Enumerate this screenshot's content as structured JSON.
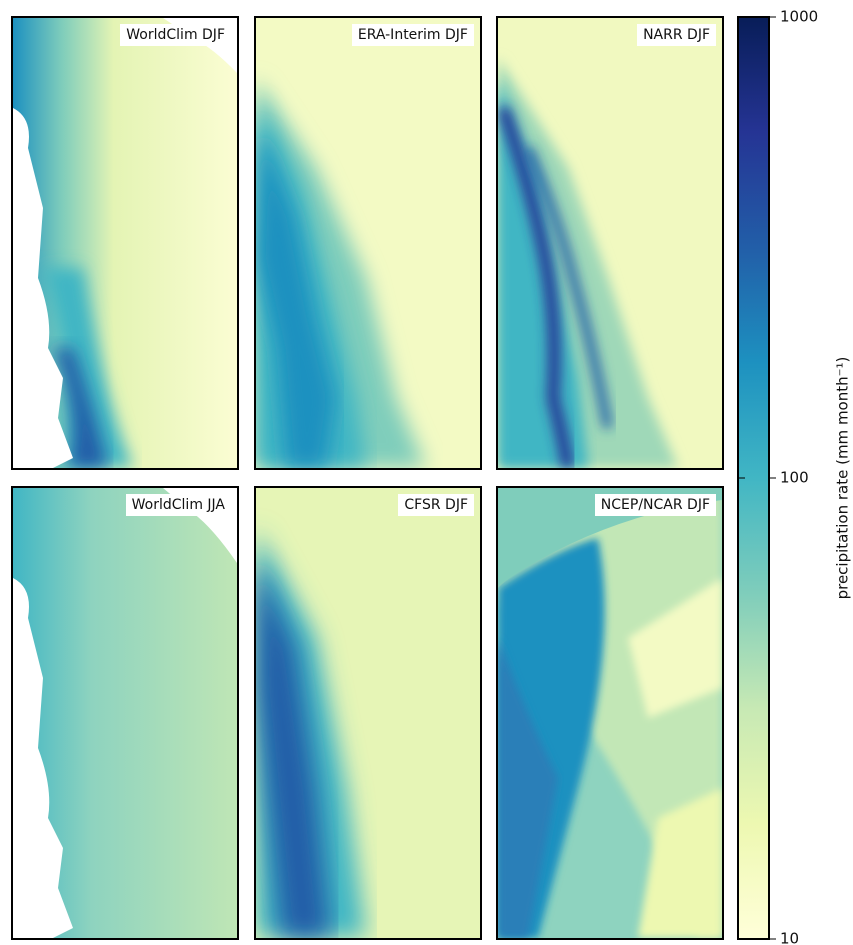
{
  "panels": [
    {
      "title": "WorldClim DJF"
    },
    {
      "title": "ERA-Interim DJF"
    },
    {
      "title": "NARR DJF"
    },
    {
      "title": "WorldClim JJA"
    },
    {
      "title": "CFSR DJF"
    },
    {
      "title": "NCEP/NCAR DJF"
    }
  ],
  "colorbar": {
    "label": "precipitation rate (mm month⁻¹)",
    "scale": "log",
    "lim": [
      10,
      1000
    ],
    "ticks": [
      10,
      100,
      1000
    ]
  }
}
